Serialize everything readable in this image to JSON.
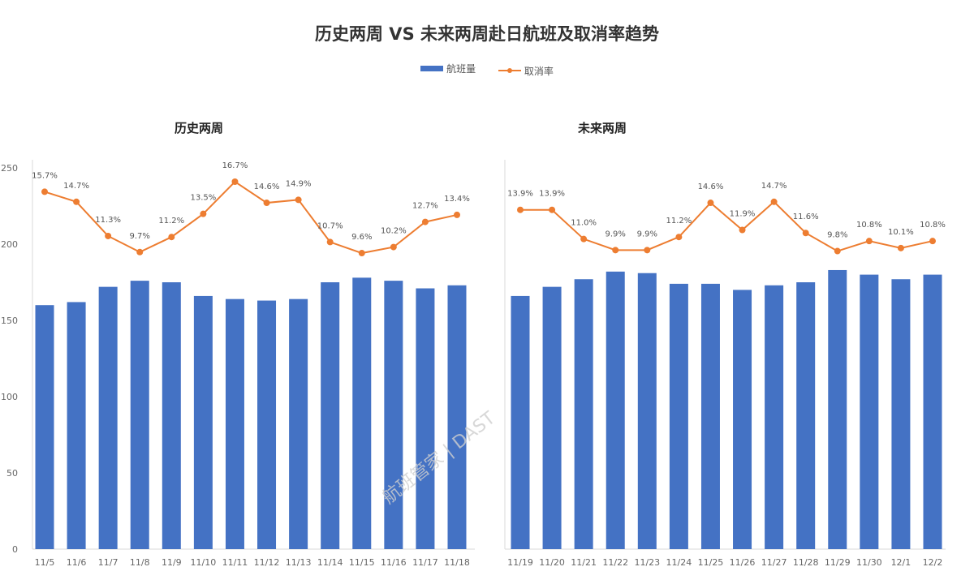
{
  "chart_data": [
    {
      "type": "bar+line",
      "title": "历史两周",
      "categories": [
        "11/5",
        "11/6",
        "11/7",
        "11/8",
        "11/9",
        "11/10",
        "11/11",
        "11/12",
        "11/13",
        "11/14",
        "11/15",
        "11/16",
        "11/17",
        "11/18"
      ],
      "series": [
        {
          "name": "航班量",
          "type": "bar",
          "color": "#4472c4",
          "values": [
            160,
            162,
            172,
            176,
            175,
            166,
            164,
            163,
            164,
            175,
            178,
            176,
            171,
            173
          ]
        },
        {
          "name": "取消率",
          "type": "line",
          "color": "#ed7d31",
          "axis": "secondary-hidden",
          "values": [
            15.7,
            14.7,
            11.3,
            9.7,
            11.2,
            13.5,
            16.7,
            14.6,
            14.9,
            10.7,
            9.6,
            10.2,
            12.7,
            13.4
          ],
          "labels": [
            "15.7%",
            "14.7%",
            "11.3%",
            "9.7%",
            "11.2%",
            "13.5%",
            "16.7%",
            "14.6%",
            "14.9%",
            "10.7%",
            "9.6%",
            "10.2%",
            "12.7%",
            "13.4%"
          ]
        }
      ],
      "yticks": [
        "0",
        "50",
        "100",
        "150",
        "200",
        "250"
      ],
      "ylim": [
        0,
        250
      ],
      "grid": false
    },
    {
      "type": "bar+line",
      "title": "未来两周",
      "categories": [
        "11/19",
        "11/20",
        "11/21",
        "11/22",
        "11/23",
        "11/24",
        "11/25",
        "11/26",
        "11/27",
        "11/28",
        "11/29",
        "11/30",
        "12/1",
        "12/2"
      ],
      "series": [
        {
          "name": "航班量",
          "type": "bar",
          "color": "#4472c4",
          "values": [
            166,
            172,
            177,
            182,
            181,
            174,
            174,
            170,
            173,
            175,
            183,
            180,
            177,
            180
          ]
        },
        {
          "name": "取消率",
          "type": "line",
          "color": "#ed7d31",
          "axis": "secondary-hidden",
          "values": [
            13.9,
            13.9,
            11.0,
            9.9,
            9.9,
            11.2,
            14.6,
            11.9,
            14.7,
            11.6,
            9.8,
            10.8,
            10.1,
            10.8
          ],
          "labels": [
            "13.9%",
            "13.9%",
            "11.0%",
            "9.9%",
            "9.9%",
            "11.2%",
            "14.6%",
            "11.9%",
            "14.7%",
            "11.6%",
            "9.8%",
            "10.8%",
            "10.1%",
            "10.8%"
          ]
        }
      ],
      "ylim": [
        0,
        250
      ],
      "grid": false
    }
  ],
  "title": "历史两周 VS 未来两周赴日航班及取消率趋势",
  "legend": {
    "bar": "航班量",
    "line": "取消率",
    "placement": "top"
  },
  "watermark": "航班管家 | DAST"
}
